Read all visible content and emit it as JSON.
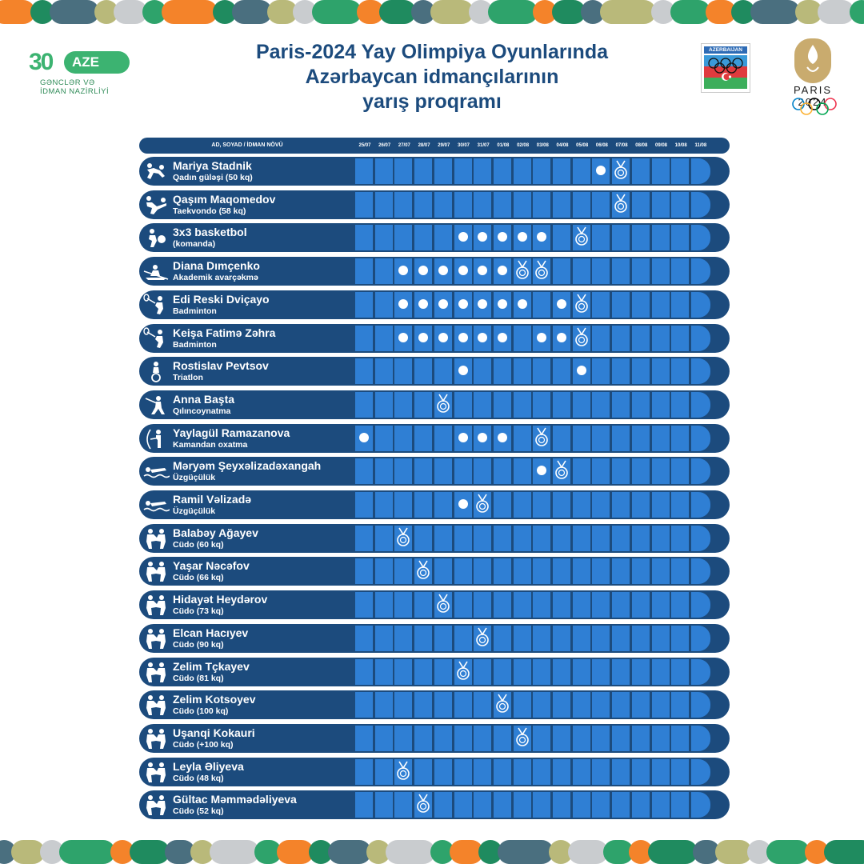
{
  "header": {
    "ministry": {
      "number": "30",
      "badge": "AZE",
      "subtitle_lines": [
        "GƏNCLƏR VƏ",
        "İDMAN NAZİRLİYİ"
      ]
    },
    "title_lines": [
      "Paris-2024 Yay Olimpiya Oyunlarında",
      "Azərbaycan idmançılarının",
      "yarış proqramı"
    ],
    "noc_label": "AZERBAIJAN",
    "games_label": "PARIS 2024"
  },
  "colors": {
    "dark_blue": "#1c4b7d",
    "cell_blue": "#2f7fd4",
    "band": [
      "#f4832a",
      "#2ea36b",
      "#c9cccf",
      "#b9b97a",
      "#4a6f7f",
      "#1f8b5f"
    ]
  },
  "table": {
    "name_header": "AD, SOYAD / İDMAN NÖVÜ",
    "dates": [
      "25/07",
      "26/07",
      "27/07",
      "28/07",
      "29/07",
      "30/07",
      "31/07",
      "01/08",
      "02/08",
      "03/08",
      "04/08",
      "05/08",
      "06/08",
      "07/08",
      "08/08",
      "09/08",
      "10/08",
      "11/08"
    ],
    "rows": [
      {
        "name": "Mariya Stadnik",
        "event": "Qadın güləşi (50 kq)",
        "icon": "wrestling-icon",
        "dots": [
          12
        ],
        "medals": [
          13
        ]
      },
      {
        "name": "Qaşım Maqomedov",
        "event": "Taekvondo (58 kq)",
        "icon": "taekwondo-icon",
        "dots": [],
        "medals": [
          13
        ]
      },
      {
        "name": "3x3 basketbol",
        "event": "(komanda)",
        "icon": "basketball-icon",
        "dots": [
          5,
          6,
          7,
          8,
          9
        ],
        "medals": [
          11
        ]
      },
      {
        "name": "Diana Dımçenko",
        "event": "Akademik avarçəkmə",
        "icon": "rowing-icon",
        "dots": [
          2,
          3,
          4,
          5,
          6,
          7
        ],
        "medals": [
          8,
          9
        ]
      },
      {
        "name": "Edi Reski Dviçayo",
        "event": "Badminton",
        "icon": "badminton-icon",
        "dots": [
          2,
          3,
          4,
          5,
          6,
          7,
          8,
          10
        ],
        "medals": [
          11
        ]
      },
      {
        "name": "Keişa Fatimə Zəhra",
        "event": "Badminton",
        "icon": "badminton-icon",
        "dots": [
          2,
          3,
          4,
          5,
          6,
          7,
          9,
          10
        ],
        "medals": [
          11
        ]
      },
      {
        "name": "Rostislav Pevtsov",
        "event": "Triatlon",
        "icon": "triathlon-icon",
        "dots": [
          5,
          11
        ],
        "medals": []
      },
      {
        "name": "Anna Başta",
        "event": "Qılıncoynatma",
        "icon": "fencing-icon",
        "dots": [],
        "medals": [
          4
        ]
      },
      {
        "name": "Yaylagül Ramazanova",
        "event": "Kamandan oxatma",
        "icon": "archery-icon",
        "dots": [
          0,
          5,
          6,
          7
        ],
        "medals": [
          9
        ]
      },
      {
        "name": "Məryəm Şeyxəlizadəxangah",
        "event": "Üzgüçülük",
        "icon": "swimming-icon",
        "dots": [
          9
        ],
        "medals": [
          10
        ]
      },
      {
        "name": "Ramil Vəlizadə",
        "event": "Üzgüçülük",
        "icon": "swimming-icon",
        "dots": [
          5
        ],
        "medals": [
          6
        ]
      },
      {
        "name": "Balabəy Ağayev",
        "event": "Cüdo (60 kq)",
        "icon": "judo-icon",
        "dots": [],
        "medals": [
          2
        ]
      },
      {
        "name": "Yaşar Nəcəfov",
        "event": "Cüdo (66 kq)",
        "icon": "judo-icon",
        "dots": [],
        "medals": [
          3
        ]
      },
      {
        "name": "Hidayət Heydərov",
        "event": "Cüdo (73 kq)",
        "icon": "judo-icon",
        "dots": [],
        "medals": [
          4
        ]
      },
      {
        "name": "Elcan Hacıyev",
        "event": "Cüdo (90 kq)",
        "icon": "judo-icon",
        "dots": [],
        "medals": [
          6
        ]
      },
      {
        "name": "Zelim Tçkayev",
        "event": "Cüdo (81 kq)",
        "icon": "judo-icon",
        "dots": [],
        "medals": [
          5
        ]
      },
      {
        "name": "Zelim Kotsoyev",
        "event": "Cüdo (100 kq)",
        "icon": "judo-icon",
        "dots": [],
        "medals": [
          7
        ]
      },
      {
        "name": "Uşanqi Kokauri",
        "event": "Cüdo (+100 kq)",
        "icon": "judo-icon",
        "dots": [],
        "medals": [
          8
        ]
      },
      {
        "name": "Leyla Əliyeva",
        "event": "Cüdo (48 kq)",
        "icon": "judo-icon",
        "dots": [],
        "medals": [
          2
        ]
      },
      {
        "name": "Gültac Məmmədəliyeva",
        "event": "Cüdo (52 kq)",
        "icon": "judo-icon",
        "dots": [],
        "medals": [
          3
        ]
      }
    ]
  }
}
